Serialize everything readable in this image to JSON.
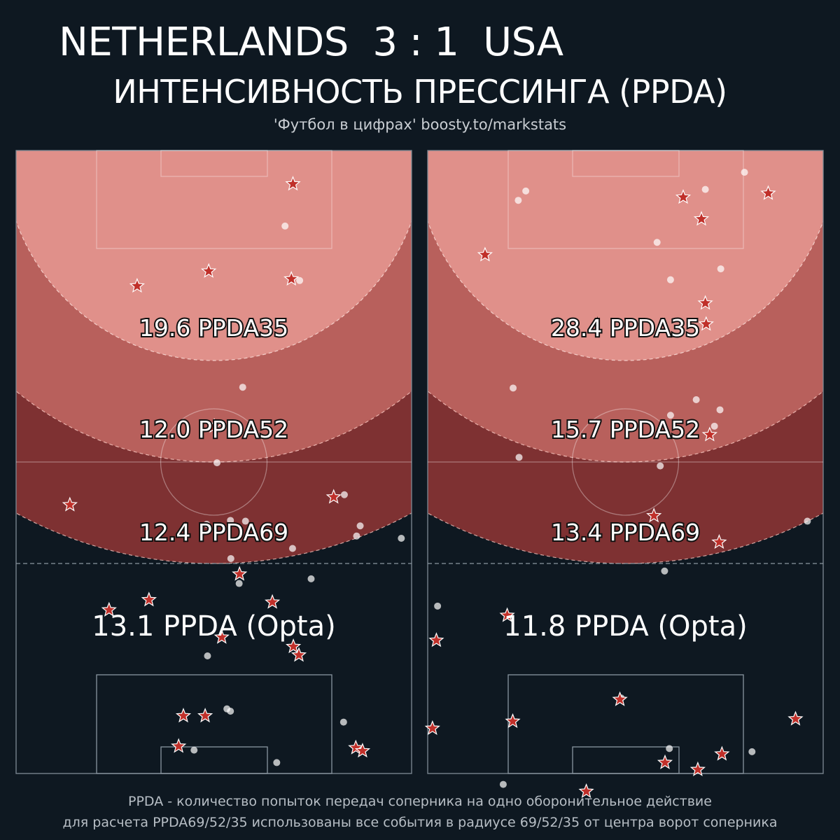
{
  "header": {
    "title": "NETHERLANDS  3 : 1  USA",
    "subtitle": "ИНТЕНСИВНОСТЬ ПРЕССИНГА (PPDA)",
    "credit": "'Футбол в цифрах' boosty.to/markstats"
  },
  "footer": {
    "line1": "PPDA - количество попыток передач соперника на одно оборонительное действие",
    "line2": "для расчета PPDA69/52/35 использованы все события в радиусе 69/52/35 от центра ворот соперника"
  },
  "colors": {
    "background": "#0e1821",
    "zone35": "#e0908a",
    "zone52": "#b8605c",
    "zone69": "#7e3132",
    "star": "#c0302a",
    "dot": "#ffffff"
  },
  "chart_data": [
    {
      "type": "scatter",
      "team": "NETHERLANDS",
      "ppda_labels": {
        "ppda35": "19.6 PPDA35",
        "ppda52": "12.0 PPDA52",
        "ppda69": "12.4 PPDA69",
        "opta": "13.1 PPDA (Opta)"
      },
      "stars": [
        [
          45.5,
          13.6
        ],
        [
          17.4,
          30.6
        ],
        [
          44.5,
          80.3
        ],
        [
          59.0,
          23.5
        ],
        [
          63.7,
          70.1
        ],
        [
          58.0,
          64.8
        ],
        [
          76.7,
          85.9
        ],
        [
          62.5,
          52.0
        ],
        [
          72.6,
          47.8
        ],
        [
          64.8,
          71.5
        ],
        [
          54.4,
          56.5
        ],
        [
          57.7,
          33.6
        ],
        [
          15.5,
          48.7
        ],
        [
          76.5,
          41.1
        ],
        [
          72.6,
          42.3
        ],
        [
          35.4,
          50.1
        ],
        [
          4.3,
          70.0
        ],
        [
          16.5,
          69.6
        ],
        [
          77.1,
          87.6
        ]
      ],
      "dots": [
        [
          9.7,
          68.0
        ],
        [
          52.4,
          54.3
        ],
        [
          77.0,
          45.0
        ],
        [
          64.9,
          48.4
        ],
        [
          73.4,
          82.8
        ],
        [
          78.6,
          65.9
        ],
        [
          71.7,
          53.3
        ],
        [
          72.0,
          54.2
        ],
        [
          47.5,
          54.2
        ],
        [
          55.6,
          56.4
        ],
        [
          51.1,
          69.9
        ],
        [
          40.1,
          50.8
        ],
        [
          47.6,
          58.0
        ],
        [
          48.0,
          48.2
        ],
        [
          30.4,
          57.3
        ],
        [
          49.5,
          86.1
        ],
        [
          49.8,
          97.4
        ],
        [
          55.0,
          74.6
        ],
        [
          44.2,
          83.0
        ],
        [
          48.2,
          87.0
        ],
        [
          16.7,
          71.7
        ]
      ]
    },
    {
      "type": "scatter",
      "team": "USA",
      "ppda_labels": {
        "ppda35": "28.4 PPDA35",
        "ppda52": "15.7 PPDA52",
        "ppda69": "13.4 PPDA69",
        "opta": "11.8 PPDA (Opta)"
      },
      "stars": [
        [
          50.3,
          73.7
        ],
        [
          19.6,
          70.2
        ],
        [
          22.3,
          70.4
        ],
        [
          5.5,
          86.1
        ],
        [
          59.7,
          20.1
        ],
        [
          62.9,
          2.2
        ],
        [
          46.9,
          57.2
        ],
        [
          78.6,
          60.0
        ],
        [
          73.0,
          93.0
        ],
        [
          82.3,
          40.1
        ],
        [
          79.5,
          68.3
        ],
        [
          70.5,
          48.6
        ],
        [
          73.3,
          21.5
        ],
        [
          6.0,
          64.6
        ],
        [
          13.4,
          14.5
        ],
        [
          8.8,
          69.2
        ],
        [
          74.2,
          1.2
        ],
        [
          36.5,
          71.3
        ],
        [
          77.5,
          74.4
        ]
      ],
      "dots": [
        [
          15.2,
          74.1
        ],
        [
          58.5,
          2.5
        ],
        [
          39.4,
          23.1
        ],
        [
          76.8,
          61.1
        ],
        [
          35.4,
          72.5
        ],
        [
          81.4,
          19.1
        ],
        [
          11.8,
          58.0
        ],
        [
          30.5,
          21.6
        ],
        [
          16.6,
          61.4
        ],
        [
          40.5,
          58.8
        ],
        [
          70.3,
          48.9
        ],
        [
          33.3,
          73.9
        ],
        [
          34.0,
          61.4
        ],
        [
          32.0,
          67.9
        ],
        [
          5.0,
          70.2
        ],
        [
          54.0,
          59.9
        ],
        [
          6.4,
          22.9
        ],
        [
          5.2,
          24.8
        ],
        [
          47.6,
          96.0
        ],
        [
          2.8,
          80.1
        ],
        [
          77.2,
          82.0
        ]
      ]
    }
  ]
}
